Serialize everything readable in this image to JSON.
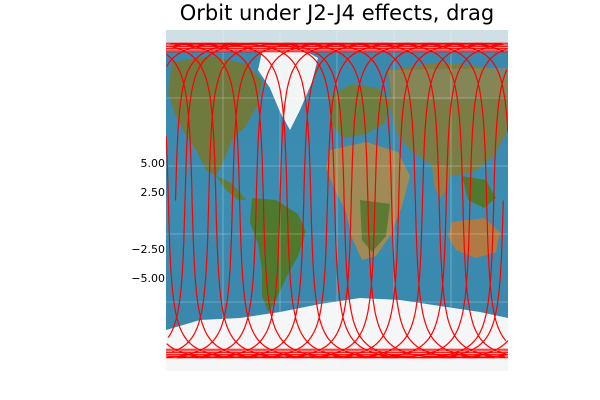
{
  "chart_data": {
    "type": "line",
    "title": "Orbit under J2-J4 effects, drag",
    "xlabel": "",
    "ylabel": "",
    "y_ticks": [
      {
        "value": 5.0,
        "label": "5.00"
      },
      {
        "value": 2.5,
        "label": "2.50"
      },
      {
        "value": -2.5,
        "label": "−2.50"
      },
      {
        "value": -5.0,
        "label": "−5.00"
      }
    ],
    "ylim": [
      -10.5,
      10.5
    ],
    "grid": true,
    "legend": "none",
    "background": "world map (satellite imagery)",
    "series": [
      {
        "color": "#ff0000",
        "ground_track": {
          "inclination_deg": 83,
          "lon_step_per_orbit_deg": 25,
          "passes": 15,
          "lon_start_deg": -170
        }
      }
    ],
    "colors": {
      "track": "#ff0000",
      "ocean": "#3b8cb0",
      "land": "#6a7d3c",
      "ice": "#f4f6f7"
    }
  }
}
